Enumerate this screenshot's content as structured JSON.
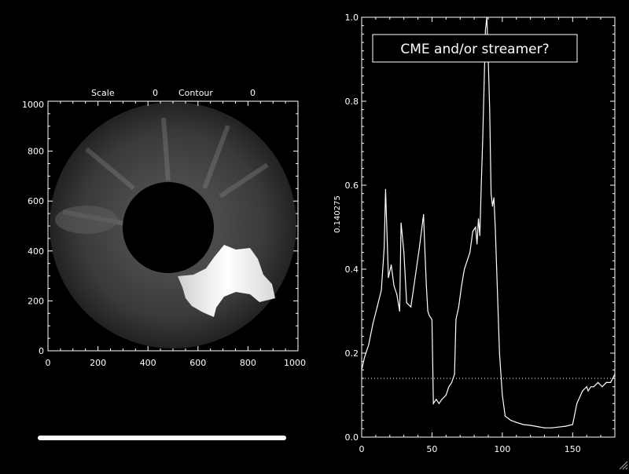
{
  "left_plot": {
    "scale_label": "Scale",
    "scale_value": "0",
    "contour_label": "Contour",
    "contour_value": "0",
    "x_ticks": [
      "0",
      "200",
      "400",
      "600",
      "800",
      "1000"
    ],
    "y_ticks": [
      "0",
      "200",
      "400",
      "600",
      "800",
      "1000"
    ]
  },
  "right_plot": {
    "annotation": "CME and/or streamer?",
    "ylabel": "0.140275",
    "x_ticks": [
      "0",
      "50",
      "100",
      "150"
    ],
    "y_ticks": [
      "0.0",
      "0.2",
      "0.4",
      "0.6",
      "0.8",
      "1.0"
    ]
  },
  "progress": {
    "fraction": 0.81
  },
  "colors": {
    "background": "#000000",
    "foreground": "#ffffff"
  },
  "chart_data": [
    {
      "type": "line",
      "title": "",
      "xlabel": "",
      "ylabel": "0.140275",
      "xlim": [
        0,
        180
      ],
      "ylim": [
        0,
        1
      ],
      "threshold": 0.14,
      "threshold_style": "dotted",
      "x": [
        0,
        2,
        5,
        8,
        11,
        14,
        16,
        17,
        19,
        21,
        23,
        25,
        27,
        28,
        30,
        32,
        35,
        38,
        41,
        44,
        45,
        46,
        47,
        48,
        50,
        51,
        53,
        55,
        57,
        60,
        62,
        64,
        66,
        67,
        69,
        71,
        73,
        75,
        77,
        79,
        81,
        82,
        83,
        84,
        85,
        86,
        87,
        88,
        89,
        90,
        91,
        92,
        93,
        94,
        95,
        96,
        97,
        98,
        100,
        102,
        104,
        106,
        110,
        115,
        120,
        125,
        130,
        135,
        140,
        145,
        150,
        153,
        157,
        160,
        161,
        163,
        165,
        168,
        171,
        174,
        177,
        180
      ],
      "values": [
        0.16,
        0.19,
        0.22,
        0.27,
        0.31,
        0.35,
        0.45,
        0.59,
        0.38,
        0.41,
        0.36,
        0.34,
        0.3,
        0.51,
        0.44,
        0.32,
        0.31,
        0.38,
        0.45,
        0.53,
        0.44,
        0.36,
        0.3,
        0.29,
        0.28,
        0.08,
        0.09,
        0.08,
        0.09,
        0.1,
        0.12,
        0.13,
        0.15,
        0.28,
        0.31,
        0.36,
        0.4,
        0.42,
        0.44,
        0.49,
        0.5,
        0.46,
        0.52,
        0.48,
        0.6,
        0.7,
        0.83,
        0.97,
        1.0,
        0.9,
        0.78,
        0.58,
        0.55,
        0.57,
        0.5,
        0.4,
        0.3,
        0.2,
        0.1,
        0.05,
        0.045,
        0.04,
        0.035,
        0.03,
        0.028,
        0.025,
        0.022,
        0.022,
        0.024,
        0.026,
        0.03,
        0.08,
        0.11,
        0.12,
        0.11,
        0.12,
        0.12,
        0.13,
        0.12,
        0.13,
        0.13,
        0.15
      ]
    }
  ]
}
